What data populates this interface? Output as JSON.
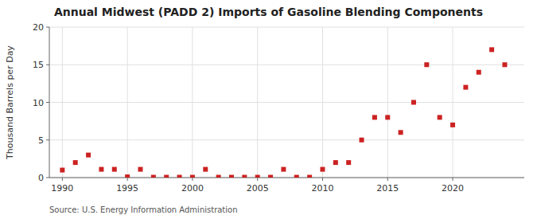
{
  "chart_data": {
    "type": "scatter",
    "title": "Annual Midwest (PADD 2) Imports of Gasoline Blending Components",
    "y_label": "Thousand Barrels per Day",
    "annotations": [
      "Source: U.S. Energy Information Administration"
    ],
    "x": [
      1990,
      1991,
      1992,
      1993,
      1994,
      1995,
      1996,
      1997,
      1998,
      1999,
      2000,
      2001,
      2002,
      2003,
      2004,
      2005,
      2006,
      2007,
      2008,
      2009,
      2010,
      2011,
      2012,
      2013,
      2014,
      2015,
      2016,
      2017,
      2018,
      2019,
      2020,
      2021,
      2022,
      2023,
      2024
    ],
    "values": [
      1.0,
      2.0,
      3.0,
      1.1,
      1.1,
      0.1,
      1.1,
      0.05,
      0.05,
      0.05,
      0.05,
      1.1,
      0.05,
      0.05,
      0.05,
      0.05,
      0.05,
      1.1,
      0.05,
      0.05,
      1.1,
      2.0,
      2.0,
      5.0,
      8.0,
      8.0,
      6.0,
      10.0,
      15.0,
      8.0,
      7.0,
      12.0,
      14.0,
      17.0,
      15.0
    ],
    "color": "#cc2222",
    "marker": "square",
    "xlim": [
      1989.0,
      2025.5
    ],
    "xticks": [
      1990,
      1995,
      2000,
      2005,
      2010,
      2015,
      2020
    ],
    "ylim": [
      0,
      20
    ],
    "yticks": [
      0,
      5,
      10,
      15,
      20
    ],
    "grid": true
  }
}
